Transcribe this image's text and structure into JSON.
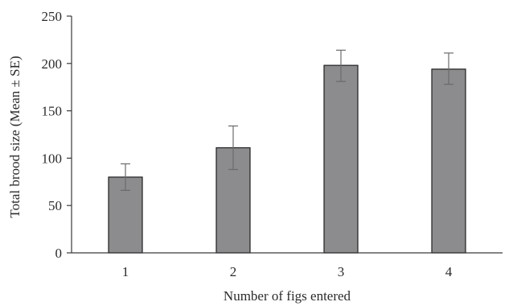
{
  "chart_data": {
    "type": "bar",
    "categories": [
      "1",
      "2",
      "3",
      "4"
    ],
    "values": [
      80,
      111,
      198,
      194
    ],
    "error_upper": [
      94,
      134,
      214,
      211
    ],
    "error_lower": [
      66,
      88,
      181,
      178
    ],
    "xlabel": "Number of figs entered",
    "ylabel": "Total brood size (Mean ± SE)",
    "ylim": [
      0,
      250
    ],
    "yticks": [
      "0",
      "50",
      "100",
      "150",
      "200",
      "250"
    ],
    "grid": false,
    "legend": "none",
    "bar_color": "#8c8c8e",
    "bar_edge_color": "#1f1f1f",
    "errorbar_color": "#6a6a6a"
  }
}
